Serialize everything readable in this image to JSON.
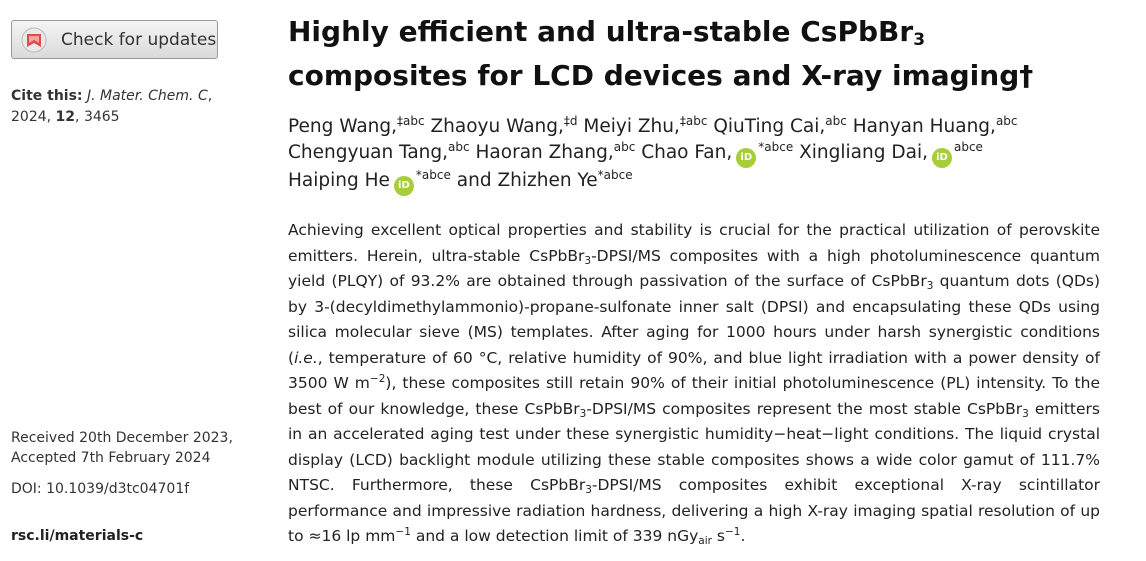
{
  "sidebar": {
    "check_updates_label": "Check for updates",
    "cite_label": "Cite this:",
    "cite_journal": "J. Mater. Chem. C",
    "cite_year": "2024",
    "cite_volume": "12",
    "cite_page": "3465",
    "received": "Received 20th December 2023,",
    "accepted": "Accepted 7th February 2024",
    "doi": "DOI: 10.1039/d3tc04701f",
    "journal_link": "rsc.li/materials-c"
  },
  "article": {
    "title_part1": "Highly efficient and ultra-stable CsPbBr",
    "title_sub": "3",
    "title_part2": "composites for LCD devices and X-ray imaging",
    "title_dagger": "†"
  },
  "authors": {
    "a1": "Peng Wang,",
    "a1_sup": "‡abc",
    "a2": "Zhaoyu Wang,",
    "a2_sup": "‡d",
    "a3": "Meiyi Zhu,",
    "a3_sup": "‡abc",
    "a4": "QiuTing Cai,",
    "a4_sup": "abc",
    "a5": "Hanyan Huang,",
    "a5_sup": "abc",
    "a6": "Chengyuan Tang,",
    "a6_sup": "abc",
    "a7": "Haoran Zhang,",
    "a7_sup": "abc",
    "a8": "Chao Fan,",
    "a8_sup": "*abce",
    "a9": "Xingliang Dai,",
    "a9_sup": "abce",
    "a10": "Haiping He",
    "a10_sup": "*abce",
    "conj": "and",
    "a11": "Zhizhen Ye",
    "a11_sup": "*abce",
    "orcid_label": "iD"
  },
  "abstract": {
    "p1": "Achieving excellent optical properties and stability is crucial for the practical utilization of perovskite emitters. Herein, ultra-stable CsPbBr",
    "s1": "3",
    "p2": "-DPSI/MS composites with a high photoluminescence quantum yield (PLQY) of 93.2% are obtained through passivation of the surface of CsPbBr",
    "s2": "3",
    "p3": " quantum dots (QDs) by 3-(decyldimethylammonio)-propane-sulfonate inner salt (DPSI) and encapsulating these QDs using silica molecular sieve (MS) templates. After aging for 1000 hours under harsh synergistic conditions (",
    "ie": "i.e.",
    "p4": ", temperature of 60 °C, relative humidity of 90%, and blue light irradiation with a power density of 3500 W m",
    "sup1": "−2",
    "p5": "), these composites still retain 90% of their initial photoluminescence (PL) intensity. To the best of our knowledge, these CsPbBr",
    "s3": "3",
    "p6": "-DPSI/MS composites represent the most stable CsPbBr",
    "s4": "3",
    "p7": " emitters in an accelerated aging test under these synergistic humidity−heat−light conditions. The liquid crystal display (LCD) backlight module utilizing these stable composites shows a wide color gamut of 111.7% NTSC. Furthermore, these CsPbBr",
    "s5": "3",
    "p8": "-DPSI/MS composites exhibit exceptional X-ray scintillator performance and impressive radiation hardness, delivering a high X-ray imaging spatial resolution of up to ≈16 lp mm",
    "sup2": "−1",
    "p9": " and a low detection limit of 339 nGy",
    "sub_air": "air",
    "p10": " s",
    "sup3": "−1",
    "p11": "."
  }
}
